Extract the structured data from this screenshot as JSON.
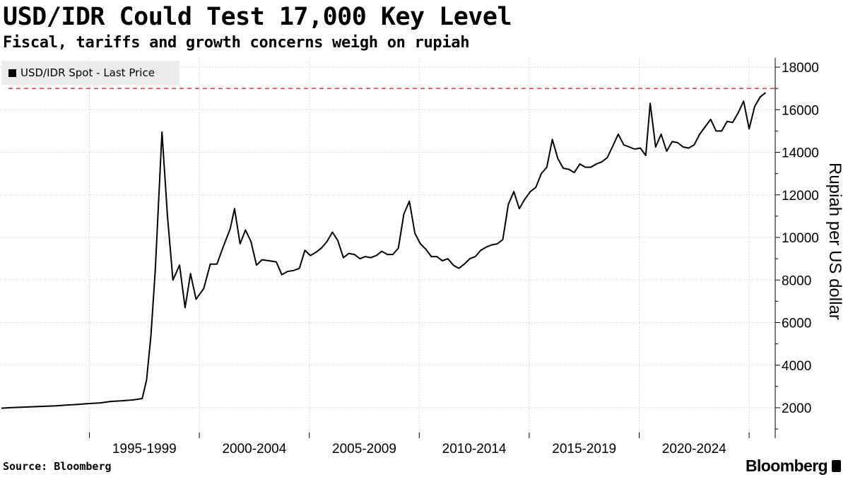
{
  "header": {
    "title": "USD/IDR Could Test 17,000 Key Level",
    "subtitle": "Fiscal, tariffs and growth concerns weigh on rupiah"
  },
  "footer": {
    "source": "Source: Bloomberg",
    "brand": "Bloomberg"
  },
  "colors": {
    "line": "#000000",
    "reference_line": "#e8383d",
    "legend_bg": "#ececec",
    "grid": "#d9d9d9"
  },
  "chart_data": {
    "type": "line",
    "title": "USD/IDR Could Test 17,000 Key Level",
    "subtitle": "Fiscal, tariffs and growth concerns weigh on rupiah",
    "ylabel": "Rupiah per US dollar",
    "ylim": [
      1000,
      18500
    ],
    "yticks": [
      2000,
      4000,
      6000,
      8000,
      10000,
      12000,
      14000,
      16000,
      18000
    ],
    "xlim": [
      1991.0,
      2026.25
    ],
    "x_categories": [
      {
        "label": "1995-1999",
        "start": 1995,
        "end": 2000
      },
      {
        "label": "2000-2004",
        "start": 2000,
        "end": 2005
      },
      {
        "label": "2005-2009",
        "start": 2005,
        "end": 2010
      },
      {
        "label": "2010-2014",
        "start": 2010,
        "end": 2015
      },
      {
        "label": "2015-2019",
        "start": 2015,
        "end": 2020
      },
      {
        "label": "2020-2024",
        "start": 2020,
        "end": 2025
      }
    ],
    "grid": true,
    "legend_position": "top-left",
    "reference_line": {
      "y": 17000,
      "style": "dashed"
    },
    "series": [
      {
        "name": "USD/IDR Spot - Last Price",
        "points": [
          [
            1991.0,
            1980
          ],
          [
            1991.5,
            2010
          ],
          [
            1992.0,
            2030
          ],
          [
            1992.5,
            2050
          ],
          [
            1993.0,
            2070
          ],
          [
            1993.5,
            2090
          ],
          [
            1994.0,
            2130
          ],
          [
            1994.5,
            2160
          ],
          [
            1995.0,
            2200
          ],
          [
            1995.5,
            2230
          ],
          [
            1996.0,
            2300
          ],
          [
            1996.5,
            2330
          ],
          [
            1997.0,
            2370
          ],
          [
            1997.4,
            2430
          ],
          [
            1997.6,
            3300
          ],
          [
            1997.8,
            5400
          ],
          [
            1998.0,
            8500
          ],
          [
            1998.3,
            14950
          ],
          [
            1998.55,
            11000
          ],
          [
            1998.8,
            8000
          ],
          [
            1999.1,
            8700
          ],
          [
            1999.35,
            6700
          ],
          [
            1999.6,
            8300
          ],
          [
            1999.85,
            7100
          ],
          [
            2000.2,
            7600
          ],
          [
            2000.5,
            8750
          ],
          [
            2000.8,
            8750
          ],
          [
            2001.1,
            9600
          ],
          [
            2001.4,
            10400
          ],
          [
            2001.6,
            11350
          ],
          [
            2001.85,
            9700
          ],
          [
            2002.1,
            10350
          ],
          [
            2002.35,
            9800
          ],
          [
            2002.6,
            8700
          ],
          [
            2002.85,
            8950
          ],
          [
            2003.2,
            8900
          ],
          [
            2003.5,
            8850
          ],
          [
            2003.75,
            8250
          ],
          [
            2004.0,
            8400
          ],
          [
            2004.3,
            8450
          ],
          [
            2004.55,
            8550
          ],
          [
            2004.8,
            9400
          ],
          [
            2005.05,
            9150
          ],
          [
            2005.3,
            9300
          ],
          [
            2005.55,
            9500
          ],
          [
            2005.8,
            9800
          ],
          [
            2006.05,
            10250
          ],
          [
            2006.3,
            9850
          ],
          [
            2006.55,
            9050
          ],
          [
            2006.8,
            9250
          ],
          [
            2007.05,
            9200
          ],
          [
            2007.3,
            9000
          ],
          [
            2007.55,
            9100
          ],
          [
            2007.8,
            9050
          ],
          [
            2008.05,
            9150
          ],
          [
            2008.3,
            9350
          ],
          [
            2008.55,
            9200
          ],
          [
            2008.8,
            9200
          ],
          [
            2009.05,
            9500
          ],
          [
            2009.3,
            11100
          ],
          [
            2009.55,
            11700
          ],
          [
            2009.8,
            10200
          ],
          [
            2010.05,
            9700
          ],
          [
            2010.3,
            9450
          ],
          [
            2010.55,
            9100
          ],
          [
            2010.8,
            9100
          ],
          [
            2011.05,
            8900
          ],
          [
            2011.3,
            9000
          ],
          [
            2011.55,
            8700
          ],
          [
            2011.8,
            8550
          ],
          [
            2012.05,
            8750
          ],
          [
            2012.3,
            9000
          ],
          [
            2012.55,
            9100
          ],
          [
            2012.8,
            9400
          ],
          [
            2013.05,
            9550
          ],
          [
            2013.3,
            9650
          ],
          [
            2013.55,
            9700
          ],
          [
            2013.8,
            9900
          ],
          [
            2014.05,
            11550
          ],
          [
            2014.3,
            12150
          ],
          [
            2014.55,
            11350
          ],
          [
            2014.8,
            11800
          ],
          [
            2015.05,
            12150
          ],
          [
            2015.3,
            12350
          ],
          [
            2015.55,
            13000
          ],
          [
            2015.8,
            13300
          ],
          [
            2016.05,
            14600
          ],
          [
            2016.3,
            13700
          ],
          [
            2016.55,
            13250
          ],
          [
            2016.8,
            13200
          ],
          [
            2017.05,
            13050
          ],
          [
            2017.3,
            13450
          ],
          [
            2017.55,
            13300
          ],
          [
            2017.8,
            13300
          ],
          [
            2018.05,
            13450
          ],
          [
            2018.3,
            13550
          ],
          [
            2018.55,
            13750
          ],
          [
            2018.8,
            14300
          ],
          [
            2019.05,
            14850
          ],
          [
            2019.3,
            14350
          ],
          [
            2019.55,
            14250
          ],
          [
            2019.8,
            14150
          ],
          [
            2020.05,
            14200
          ],
          [
            2020.3,
            13850
          ],
          [
            2020.5,
            16300
          ],
          [
            2020.75,
            14250
          ],
          [
            2021.0,
            14850
          ],
          [
            2021.25,
            14050
          ],
          [
            2021.5,
            14500
          ],
          [
            2021.75,
            14450
          ],
          [
            2022.0,
            14250
          ],
          [
            2022.25,
            14200
          ],
          [
            2022.5,
            14350
          ],
          [
            2022.75,
            14850
          ],
          [
            2023.0,
            15200
          ],
          [
            2023.25,
            15550
          ],
          [
            2023.5,
            15000
          ],
          [
            2023.75,
            15000
          ],
          [
            2024.0,
            15450
          ],
          [
            2024.25,
            15400
          ],
          [
            2024.5,
            15850
          ],
          [
            2024.75,
            16400
          ],
          [
            2025.0,
            15100
          ],
          [
            2025.25,
            16150
          ],
          [
            2025.5,
            16600
          ],
          [
            2025.75,
            16800
          ]
        ]
      }
    ]
  }
}
